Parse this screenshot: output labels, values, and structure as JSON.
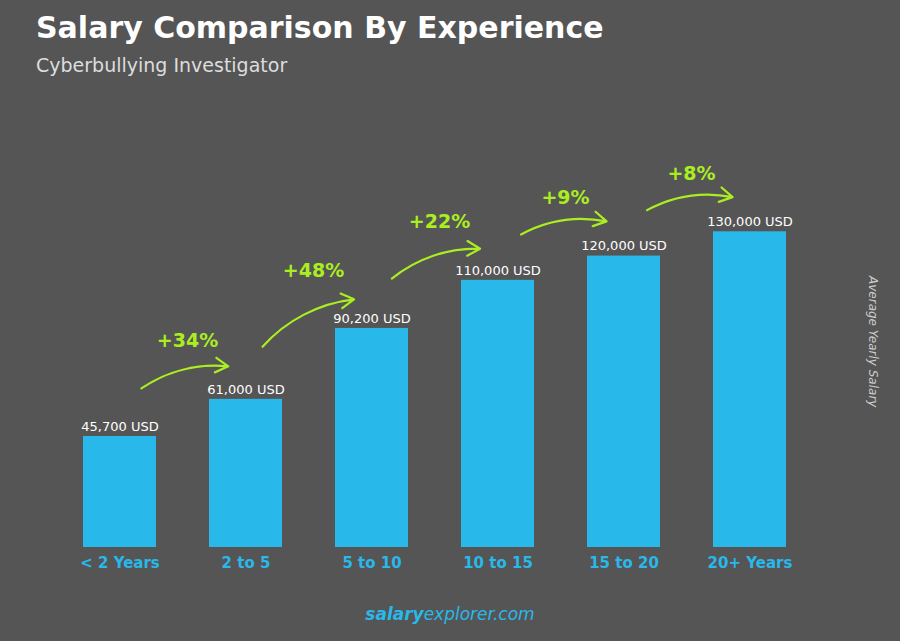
{
  "chart_data": {
    "type": "bar",
    "title": "Salary Comparison By Experience",
    "subtitle": "Cyberbullying Investigator",
    "categories": [
      "< 2 Years",
      "2 to 5",
      "5 to 10",
      "10 to 15",
      "15 to 20",
      "20+ Years"
    ],
    "values": [
      45700,
      61000,
      90200,
      110000,
      120000,
      130000
    ],
    "value_labels": [
      "45,700 USD",
      "61,000 USD",
      "90,200 USD",
      "110,000 USD",
      "120,000 USD",
      "130,000 USD"
    ],
    "data_labels": true,
    "color": "#29b8ea",
    "ylabel": "Average Yearly Salary",
    "ylim": [
      0,
      175000
    ],
    "tick_labels": "x",
    "grid": false,
    "annotations": [
      {
        "text": "+34%",
        "from": "< 2 Years",
        "to": "2 to 5"
      },
      {
        "text": "+48%",
        "from": "2 to 5",
        "to": "5 to 10"
      },
      {
        "text": "+22%",
        "from": "5 to 10",
        "to": "10 to 15"
      },
      {
        "text": "+9%",
        "from": "10 to 15",
        "to": "15 to 20"
      },
      {
        "text": "+8%",
        "from": "15 to 20",
        "to": "20+ Years"
      }
    ],
    "footer": [
      "salary",
      "explorer.com"
    ]
  }
}
